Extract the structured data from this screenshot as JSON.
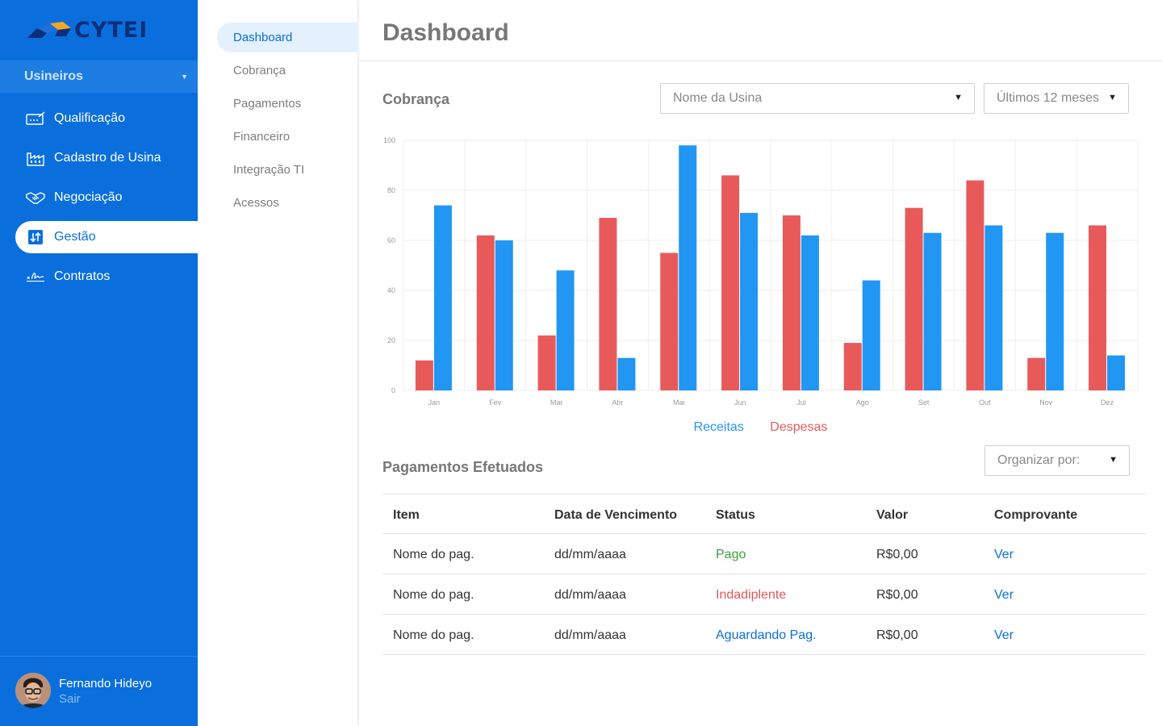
{
  "brand": {
    "name": "CYTEI"
  },
  "sidebar": {
    "role": "Usineiros",
    "items": [
      {
        "label": "Qualificação",
        "icon": "qualification-icon"
      },
      {
        "label": "Cadastro de Usina",
        "icon": "factory-icon"
      },
      {
        "label": "Negociação",
        "icon": "handshake-icon"
      },
      {
        "label": "Gestão",
        "icon": "management-icon",
        "active": true
      },
      {
        "label": "Contratos",
        "icon": "signature-icon"
      }
    ],
    "user": {
      "name": "Fernando Hideyo",
      "logout": "Sair"
    }
  },
  "subnav": {
    "items": [
      "Dashboard",
      "Cobrança",
      "Pagamentos",
      "Financeiro",
      "Integração TI",
      "Acessos"
    ],
    "active": "Dashboard"
  },
  "header": {
    "title": "Dashboard"
  },
  "cobranca": {
    "title": "Cobrança",
    "plant_select": "Nome da Usina",
    "period_select": "Últimos 12 meses"
  },
  "colors": {
    "receitas": "#2196f3",
    "despesas": "#e85a5a",
    "primary": "#0a6fdc"
  },
  "chart_data": {
    "type": "bar",
    "categories": [
      "Jan",
      "Fev",
      "Mar",
      "Abr",
      "Mai",
      "Jun",
      "Jul",
      "Ago",
      "Set",
      "Out",
      "Nov",
      "Dez"
    ],
    "series": [
      {
        "name": "Despesas",
        "values": [
          12,
          62,
          22,
          69,
          55,
          86,
          70,
          19,
          73,
          84,
          13,
          66
        ]
      },
      {
        "name": "Receitas",
        "values": [
          74,
          60,
          48,
          13,
          98,
          71,
          62,
          44,
          63,
          66,
          63,
          14
        ]
      }
    ],
    "yticks": [
      0,
      20,
      40,
      60,
      80,
      100
    ],
    "ylim": [
      0,
      100
    ],
    "grid": true,
    "legend": "bottom-center"
  },
  "legend": {
    "receitas": "Receitas",
    "despesas": "Despesas"
  },
  "payments": {
    "title": "Pagamentos Efetuados",
    "sort_select": "Organizar por:",
    "columns": [
      "Item",
      "Data de Vencimento",
      "Status",
      "Valor",
      "Comprovante"
    ],
    "rows": [
      {
        "item": "Nome do pag.",
        "date": "dd/mm/aaaa",
        "status": "Pago",
        "value": "R$0,00",
        "receipt": "Ver"
      },
      {
        "item": "Nome do pag.",
        "date": "dd/mm/aaaa",
        "status": "Indadiplente",
        "value": "R$0,00",
        "receipt": "Ver"
      },
      {
        "item": "Nome do pag.",
        "date": "dd/mm/aaaa",
        "status": "Aguardando Pag.",
        "value": "R$0,00",
        "receipt": "Ver"
      }
    ]
  }
}
